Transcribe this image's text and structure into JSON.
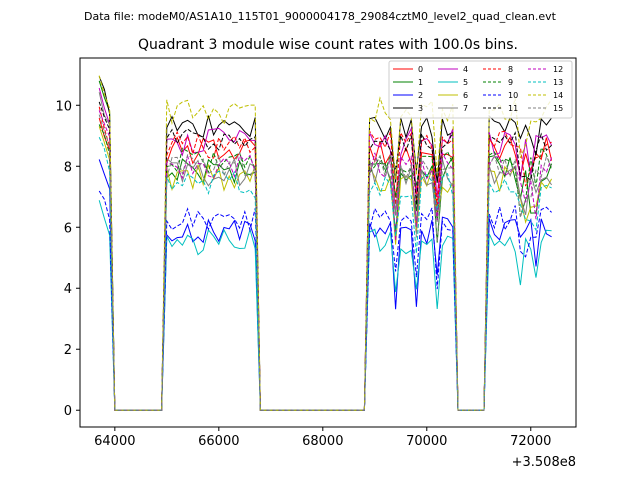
{
  "chart_data": {
    "type": "line",
    "suptitle": "Data file: modeM0/AS1A10_115T01_9000004178_29084cztM0_level2_quad_clean.evt",
    "title": "Quadrant 3 module wise count rates with 100.0s bins.",
    "xlabel": "",
    "ylabel": "",
    "x_offset_label": "+3.508e8",
    "x_offset": 350800000,
    "xlim": [
      63330,
      72870
    ],
    "ylim": [
      -0.55,
      11.55
    ],
    "x_ticks": [
      64000,
      66000,
      68000,
      70000,
      72000
    ],
    "x_tick_labels": [
      "64000",
      "66000",
      "68000",
      "70000",
      "72000"
    ],
    "y_ticks": [
      0,
      2,
      4,
      6,
      8,
      10
    ],
    "y_tick_labels": [
      "0",
      "2",
      "4",
      "6",
      "8",
      "10"
    ],
    "legend_location": "top-right",
    "legend_columns": 4,
    "series": [
      {
        "name": "0",
        "color": "#ff0000",
        "dash": "solid",
        "level": 8.5,
        "start": 9.6
      },
      {
        "name": "1",
        "color": "#008000",
        "dash": "solid",
        "level": 7.9,
        "start": 10.8
      },
      {
        "name": "2",
        "color": "#0000ff",
        "dash": "solid",
        "level": 5.9,
        "start": 8.2
      },
      {
        "name": "3",
        "color": "#000000",
        "dash": "solid",
        "level": 9.3,
        "start": 10.9
      },
      {
        "name": "4",
        "color": "#bf00bf",
        "dash": "solid",
        "level": 8.8,
        "start": 10.5
      },
      {
        "name": "5",
        "color": "#00bfbf",
        "dash": "solid",
        "level": 5.5,
        "start": 6.8
      },
      {
        "name": "6",
        "color": "#bfbf00",
        "dash": "solid",
        "level": 7.6,
        "start": 9.2
      },
      {
        "name": "7",
        "color": "#808080",
        "dash": "solid",
        "level": 7.8,
        "start": 10.3
      },
      {
        "name": "8",
        "color": "#ff0000",
        "dash": "dashed",
        "level": 8.7,
        "start": 9.8
      },
      {
        "name": "9",
        "color": "#008000",
        "dash": "dashed",
        "level": 8.2,
        "start": 9.5
      },
      {
        "name": "10",
        "color": "#0000ff",
        "dash": "dashed",
        "level": 6.3,
        "start": 7.3
      },
      {
        "name": "11",
        "color": "#000000",
        "dash": "dashed",
        "level": 8.9,
        "start": 10.2
      },
      {
        "name": "12",
        "color": "#bf00bf",
        "dash": "dashed",
        "level": 8.0,
        "start": 9.9
      },
      {
        "name": "13",
        "color": "#00bfbf",
        "dash": "dashed",
        "level": 7.4,
        "start": 9.0
      },
      {
        "name": "14",
        "color": "#bfbf00",
        "dash": "dashed",
        "level": 9.8,
        "start": 11.0
      },
      {
        "name": "15",
        "color": "#808080",
        "dash": "dashed",
        "level": 8.0,
        "start": 9.7
      }
    ],
    "active_segments": [
      [
        63700,
        63930
      ],
      [
        65000,
        66700
      ],
      [
        68900,
        70500
      ],
      [
        71200,
        72450
      ]
    ],
    "dip_segment": [
      69100,
      70450
    ],
    "dip_period": 400,
    "bin_width": 100
  }
}
